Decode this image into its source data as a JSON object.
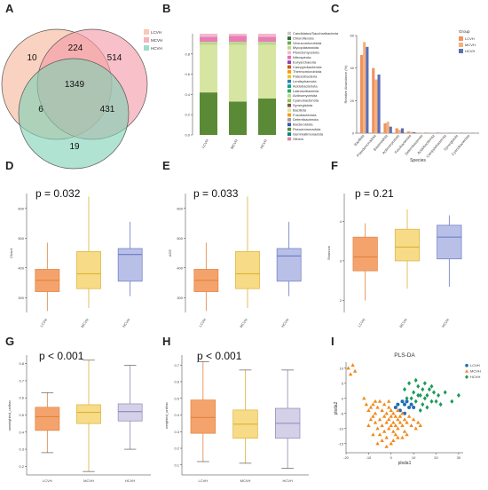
{
  "panel_letters": [
    "A",
    "B",
    "C",
    "D",
    "E",
    "F",
    "G",
    "H",
    "I"
  ],
  "chart_data": [
    {
      "panel": "A",
      "type": "venn",
      "sets": [
        {
          "name": "LCVH",
          "color": "#f7b79b"
        },
        {
          "name": "MCVH",
          "color": "#f49aa6"
        },
        {
          "name": "HCVH",
          "color": "#7fd2b5"
        }
      ],
      "regions": {
        "LCVH_only": 10,
        "MCVH_only": 514,
        "HCVH_only": 19,
        "LCVH_MCVH": 224,
        "LCVH_HCVH": 6,
        "MCVH_HCVH": 431,
        "all": 1349
      }
    },
    {
      "panel": "B",
      "type": "bar",
      "stacked": true,
      "categories": [
        "LCVH",
        "MCVH",
        "HCVH"
      ],
      "ylim": [
        0,
        1.0
      ],
      "yticks": [
        "0.0",
        "0.2",
        "0.4",
        "0.6",
        "0.8"
      ],
      "legend": [
        "Candidatus/Saccharibacteria",
        "Chloroflexota",
        "Verrucomicrobiota",
        "Mycoplasmatota",
        "Planctomycetota",
        "Nitrospirota",
        "Euryarchaeota",
        "Campylobacterota",
        "Thermomicrobiota",
        "Patescibacteria",
        "Lentisphaerota",
        "Acidobacteriota",
        "Lateoscibacteria",
        "Actinomycetota",
        "Cyanobacteriota",
        "Synergistota",
        "Bacillota",
        "Fusobacteriota",
        "Deferribacterota",
        "Bacteroidota",
        "Pseudomonadota",
        "Gemmatimonadota",
        "Others"
      ],
      "series": [
        {
          "name": "Pseudomonadota",
          "color": "#5a8a35",
          "values": [
            0.42,
            0.33,
            0.36
          ]
        },
        {
          "name": "Bacillota",
          "color": "#d7e5a3",
          "values": [
            0.47,
            0.56,
            0.53
          ]
        },
        {
          "name": "Actinomycetota",
          "color": "#bcd88f",
          "values": [
            0.03,
            0.03,
            0.03
          ]
        },
        {
          "name": "Others",
          "color": "#e87fb4",
          "values": [
            0.05,
            0.06,
            0.05
          ]
        },
        {
          "name": "Candidatus/Saccharibacteria",
          "color": "#f2b8cf",
          "values": [
            0.03,
            0.02,
            0.03
          ]
        }
      ]
    },
    {
      "panel": "C",
      "type": "bar",
      "categories": [
        "Bacillota",
        "Pseudomonadota",
        "Bacteroidota",
        "Actinomycetota",
        "Fusobacteriota",
        "Deferribacterota",
        "Acidobacteriota",
        "Campylobacterota",
        "Synergistota",
        "Cyanobacteriota"
      ],
      "series": [
        {
          "name": "LCVH",
          "color": "#f0925f",
          "values": [
            48,
            40,
            6,
            3,
            1,
            0.3,
            0.2,
            0.2,
            0.1,
            0.1
          ]
        },
        {
          "name": "MCVH",
          "color": "#f6b07a",
          "values": [
            56,
            33,
            7,
            2,
            0.8,
            0.3,
            0.2,
            0.1,
            0.1,
            0.1
          ]
        },
        {
          "name": "HCVH",
          "color": "#5b6fb7",
          "values": [
            53,
            36,
            4,
            3,
            0.6,
            0.2,
            0.2,
            0.1,
            0.1,
            0.1
          ]
        }
      ],
      "ylim": [
        0,
        60
      ],
      "yticks": [
        "0",
        "20",
        "40",
        "60"
      ],
      "xlabel": "Species",
      "ylabel": "Relative Abundance (%)",
      "legend_title": "Group"
    },
    {
      "panel": "D",
      "type": "box",
      "ylabel": "Chao1",
      "pvalue": "p = 0.032",
      "categories": [
        "LCVH",
        "MCVH",
        "HCVH"
      ],
      "ylim": [
        250,
        650
      ],
      "yticks": [
        300,
        400,
        500,
        600
      ],
      "boxes": [
        {
          "min": 255,
          "q1": 320,
          "median": 358,
          "q3": 395,
          "max": 485,
          "fill": "#f5a36d",
          "stroke": "#e0823e"
        },
        {
          "min": 265,
          "q1": 330,
          "median": 380,
          "q3": 455,
          "max": 640,
          "fill": "#f8db86",
          "stroke": "#d9b33a"
        },
        {
          "min": 305,
          "q1": 355,
          "median": 445,
          "q3": 465,
          "max": 555,
          "fill": "#b9c0e8",
          "stroke": "#6a78c3"
        }
      ]
    },
    {
      "panel": "E",
      "type": "box",
      "ylabel": "ACE",
      "pvalue": "p = 0.033",
      "categories": [
        "LCVH",
        "MCVH",
        "HCVH"
      ],
      "ylim": [
        250,
        650
      ],
      "yticks": [
        300,
        400,
        500,
        600
      ],
      "boxes": [
        {
          "min": 255,
          "q1": 320,
          "median": 358,
          "q3": 395,
          "max": 485,
          "fill": "#f5a36d",
          "stroke": "#e0823e"
        },
        {
          "min": 265,
          "q1": 330,
          "median": 380,
          "q3": 455,
          "max": 640,
          "fill": "#f8db86",
          "stroke": "#d9b33a"
        },
        {
          "min": 305,
          "q1": 355,
          "median": 440,
          "q3": 465,
          "max": 555,
          "fill": "#b9c0e8",
          "stroke": "#6a78c3"
        }
      ]
    },
    {
      "panel": "F",
      "type": "box",
      "ylabel": "Shannon",
      "pvalue": "p = 0.21",
      "categories": [
        "LCVH",
        "MCVH",
        "HCVH"
      ],
      "ylim": [
        1.7,
        4.7
      ],
      "yticks": [
        2,
        3,
        4
      ],
      "boxes": [
        {
          "min": 2.0,
          "q1": 2.75,
          "median": 3.1,
          "q3": 3.6,
          "max": 3.95,
          "fill": "#f5a36d",
          "stroke": "#e0823e"
        },
        {
          "min": 2.3,
          "q1": 3.0,
          "median": 3.35,
          "q3": 3.8,
          "max": 4.3,
          "fill": "#f8db86",
          "stroke": "#d9b33a"
        },
        {
          "min": 2.35,
          "q1": 3.05,
          "median": 3.6,
          "q3": 3.9,
          "max": 4.15,
          "fill": "#b9c0e8",
          "stroke": "#6a78c3"
        }
      ]
    },
    {
      "panel": "G",
      "type": "box",
      "ylabel": "unweighted_unifrac",
      "pvalue": "p < 0.001",
      "categories": [
        "LCVH",
        "MCVH",
        "HCVH"
      ],
      "ylim": [
        0.15,
        0.85
      ],
      "yticks": [
        "0.2",
        "0.3",
        "0.4",
        "0.5",
        "0.6",
        "0.7",
        "0.8"
      ],
      "boxes": [
        {
          "min": 0.28,
          "q1": 0.41,
          "median": 0.49,
          "q3": 0.545,
          "max": 0.63,
          "fill": "#f5a36d",
          "stroke": "#e0823e"
        },
        {
          "min": 0.17,
          "q1": 0.45,
          "median": 0.515,
          "q3": 0.56,
          "max": 0.82,
          "fill": "#f8db86",
          "stroke": "#d9b33a"
        },
        {
          "min": 0.3,
          "q1": 0.465,
          "median": 0.52,
          "q3": 0.565,
          "max": 0.79,
          "fill": "#d4d0e8",
          "stroke": "#8e89b8"
        }
      ]
    },
    {
      "panel": "H",
      "type": "box",
      "ylabel": "weighted_unifrac",
      "pvalue": "p < 0.001",
      "categories": [
        "LCVH",
        "MCVH",
        "HCVH"
      ],
      "ylim": [
        0.04,
        0.76
      ],
      "yticks": [
        "0.1",
        "0.2",
        "0.3",
        "0.4",
        "0.5",
        "0.6",
        "0.7"
      ],
      "boxes": [
        {
          "min": 0.12,
          "q1": 0.29,
          "median": 0.385,
          "q3": 0.49,
          "max": 0.72,
          "fill": "#f5a36d",
          "stroke": "#e0823e"
        },
        {
          "min": 0.11,
          "q1": 0.26,
          "median": 0.345,
          "q3": 0.43,
          "max": 0.67,
          "fill": "#f8db86",
          "stroke": "#d9b33a"
        },
        {
          "min": 0.08,
          "q1": 0.26,
          "median": 0.35,
          "q3": 0.44,
          "max": 0.67,
          "fill": "#d4d0e8",
          "stroke": "#8e89b8"
        }
      ]
    },
    {
      "panel": "I",
      "type": "scatter",
      "title": "PLS-DA",
      "xlabel": "plsda1",
      "ylabel": "plsda2",
      "xlim": [
        -20,
        32
      ],
      "ylim": [
        -18,
        12
      ],
      "xticks": [
        -20,
        -10,
        0,
        10,
        20,
        30
      ],
      "yticks": [
        -15,
        -10,
        -5,
        0,
        5,
        10
      ],
      "series": [
        {
          "name": "LCVH",
          "color": "#1f6fb3",
          "marker": "circle",
          "points": [
            [
              2,
              -3
            ],
            [
              3,
              -2
            ],
            [
              5,
              -1
            ],
            [
              6,
              -2
            ],
            [
              8,
              -3
            ],
            [
              4,
              -4
            ],
            [
              7,
              -1
            ],
            [
              9,
              -2
            ],
            [
              10,
              -3
            ],
            [
              6,
              -5
            ]
          ]
        },
        {
          "name": "MCVH",
          "color": "#f08a1c",
          "marker": "triangle",
          "points": [
            [
              -19,
              10
            ],
            [
              -18,
              8
            ],
            [
              -17,
              11
            ],
            [
              -16,
              9
            ],
            [
              -12,
              0
            ],
            [
              -11,
              -2
            ],
            [
              -10,
              -4
            ],
            [
              -9,
              -3
            ],
            [
              -8,
              -6
            ],
            [
              -7,
              -5
            ],
            [
              -7,
              -8
            ],
            [
              -6,
              -10
            ],
            [
              -6,
              -3
            ],
            [
              -5,
              -7
            ],
            [
              -5,
              -12
            ],
            [
              -4,
              -4
            ],
            [
              -4,
              -9
            ],
            [
              -4,
              -14
            ],
            [
              -3,
              -2
            ],
            [
              -3,
              -6
            ],
            [
              -3,
              -11
            ],
            [
              -2,
              -5
            ],
            [
              -2,
              -8
            ],
            [
              -2,
              -13
            ],
            [
              -1,
              -3
            ],
            [
              -1,
              -7
            ],
            [
              -1,
              -10
            ],
            [
              0,
              -4
            ],
            [
              0,
              -6
            ],
            [
              0,
              -9
            ],
            [
              0,
              -15
            ],
            [
              1,
              -5
            ],
            [
              1,
              -8
            ],
            [
              1,
              -11
            ],
            [
              2,
              -6
            ],
            [
              2,
              -9
            ],
            [
              2,
              -12
            ],
            [
              3,
              -4
            ],
            [
              3,
              -7
            ],
            [
              3,
              -10
            ],
            [
              4,
              -6
            ],
            [
              4,
              -8
            ],
            [
              5,
              -9
            ],
            [
              5,
              -5
            ],
            [
              6,
              -7
            ],
            [
              6,
              -11
            ],
            [
              7,
              -8
            ],
            [
              8,
              -6
            ],
            [
              9,
              -9
            ],
            [
              10,
              -7
            ],
            [
              11,
              -10
            ],
            [
              12,
              -8
            ],
            [
              13,
              -9
            ],
            [
              -10,
              -9
            ],
            [
              -8,
              -12
            ],
            [
              -9,
              -7
            ],
            [
              -6,
              -15
            ],
            [
              -2,
              -16
            ],
            [
              1,
              -14
            ],
            [
              3,
              -13
            ],
            [
              5,
              -13
            ],
            [
              7,
              -12
            ],
            [
              -7,
              -1
            ],
            [
              -8,
              -2
            ],
            [
              -5,
              -1
            ],
            [
              -1,
              -1
            ]
          ]
        },
        {
          "name": "HCVH",
          "color": "#1a9a57",
          "marker": "diamond",
          "points": [
            [
              6,
              3
            ],
            [
              8,
              5
            ],
            [
              10,
              2
            ],
            [
              11,
              6
            ],
            [
              12,
              4
            ],
            [
              13,
              1
            ],
            [
              14,
              3
            ],
            [
              15,
              5
            ],
            [
              16,
              1
            ],
            [
              17,
              3
            ],
            [
              18,
              -1
            ],
            [
              19,
              2
            ],
            [
              21,
              1
            ],
            [
              22,
              -2
            ],
            [
              24,
              2
            ],
            [
              27,
              -1
            ],
            [
              30,
              1
            ],
            [
              9,
              0
            ],
            [
              11,
              -1
            ],
            [
              12,
              1
            ],
            [
              14,
              -2
            ],
            [
              16,
              -3
            ],
            [
              13,
              -4
            ],
            [
              7,
              0
            ],
            [
              15,
              0
            ],
            [
              18,
              4
            ],
            [
              20,
              -1
            ]
          ]
        }
      ]
    }
  ]
}
